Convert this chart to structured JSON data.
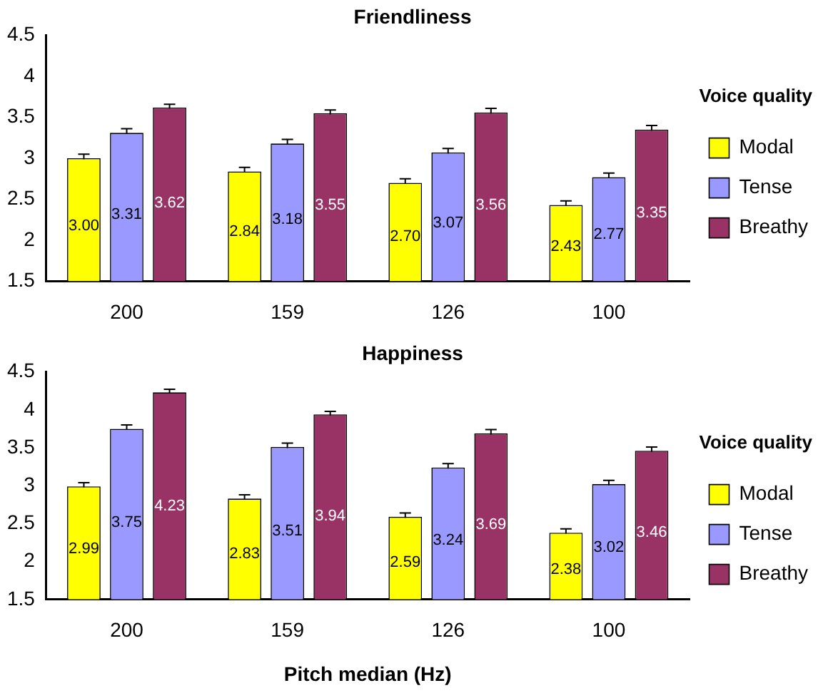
{
  "chart_data": [
    {
      "type": "bar",
      "title": "Friendliness",
      "legend_title": "Voice quality",
      "categories": [
        "200",
        "159",
        "126",
        "100"
      ],
      "ylim": [
        1.5,
        4.5
      ],
      "yticks": [
        1.5,
        2,
        2.5,
        3,
        3.5,
        4,
        4.5
      ],
      "grid": false,
      "legend": "right",
      "data_labels": true,
      "series": [
        {
          "name": "Modal",
          "color": "#ffff00",
          "values": [
            3.0,
            2.84,
            2.7,
            2.43
          ],
          "value_labels": [
            "3.00",
            "2.84",
            "2.70",
            "2.43"
          ],
          "errors": [
            0.05,
            0.05,
            0.05,
            0.05
          ]
        },
        {
          "name": "Tense",
          "color": "#9999ff",
          "values": [
            3.31,
            3.18,
            3.07,
            2.77
          ],
          "value_labels": [
            "3.31",
            "3.18",
            "3.07",
            "2.77"
          ],
          "errors": [
            0.05,
            0.05,
            0.05,
            0.05
          ]
        },
        {
          "name": "Breathy",
          "color": "#993366",
          "values": [
            3.62,
            3.55,
            3.56,
            3.35
          ],
          "value_labels": [
            "3.62",
            "3.55",
            "3.56",
            "3.35"
          ],
          "errors": [
            0.04,
            0.04,
            0.05,
            0.05
          ]
        }
      ]
    },
    {
      "type": "bar",
      "title": "Happiness",
      "legend_title": "Voice quality",
      "xlabel": "Pitch median (Hz)",
      "categories": [
        "200",
        "159",
        "126",
        "100"
      ],
      "ylim": [
        1.5,
        4.5
      ],
      "yticks": [
        1.5,
        2,
        2.5,
        3,
        3.5,
        4,
        4.5
      ],
      "grid": false,
      "legend": "right",
      "data_labels": true,
      "series": [
        {
          "name": "Modal",
          "color": "#ffff00",
          "values": [
            2.99,
            2.83,
            2.59,
            2.38
          ],
          "value_labels": [
            "2.99",
            "2.83",
            "2.59",
            "2.38"
          ],
          "errors": [
            0.05,
            0.05,
            0.05,
            0.05
          ]
        },
        {
          "name": "Tense",
          "color": "#9999ff",
          "values": [
            3.75,
            3.51,
            3.24,
            3.02
          ],
          "value_labels": [
            "3.75",
            "3.51",
            "3.24",
            "3.02"
          ],
          "errors": [
            0.05,
            0.05,
            0.05,
            0.05
          ]
        },
        {
          "name": "Breathy",
          "color": "#993366",
          "values": [
            4.23,
            3.94,
            3.69,
            3.46
          ],
          "value_labels": [
            "4.23",
            "3.94",
            "3.69",
            "3.46"
          ],
          "errors": [
            0.04,
            0.04,
            0.05,
            0.05
          ]
        }
      ]
    }
  ]
}
